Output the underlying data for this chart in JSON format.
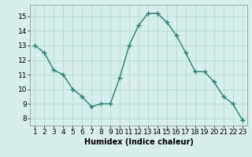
{
  "x": [
    1,
    2,
    3,
    4,
    5,
    6,
    7,
    8,
    9,
    10,
    11,
    12,
    13,
    14,
    15,
    16,
    17,
    18,
    19,
    20,
    21,
    22,
    23
  ],
  "y": [
    13.0,
    12.5,
    11.3,
    11.0,
    10.0,
    9.5,
    8.8,
    9.0,
    9.0,
    10.8,
    13.0,
    14.4,
    15.2,
    15.2,
    14.6,
    13.7,
    12.5,
    11.2,
    11.2,
    10.5,
    9.5,
    9.0,
    7.9
  ],
  "line_color": "#2e7d6e",
  "marker": "+",
  "bg_color": "#d6eeec",
  "grid_color": "#b8d8d4",
  "xlabel": "Humidex (Indice chaleur)",
  "ylim_bottom": 7.5,
  "ylim_top": 15.8,
  "xlim_left": 0.5,
  "xlim_right": 23.5,
  "yticks": [
    8,
    9,
    10,
    11,
    12,
    13,
    14,
    15
  ],
  "xticks": [
    1,
    2,
    3,
    4,
    5,
    6,
    7,
    8,
    9,
    10,
    11,
    12,
    13,
    14,
    15,
    16,
    17,
    18,
    19,
    20,
    21,
    22,
    23
  ],
  "label_fontsize": 7,
  "tick_fontsize": 6.5,
  "marker_size": 4,
  "line_width": 1.0
}
